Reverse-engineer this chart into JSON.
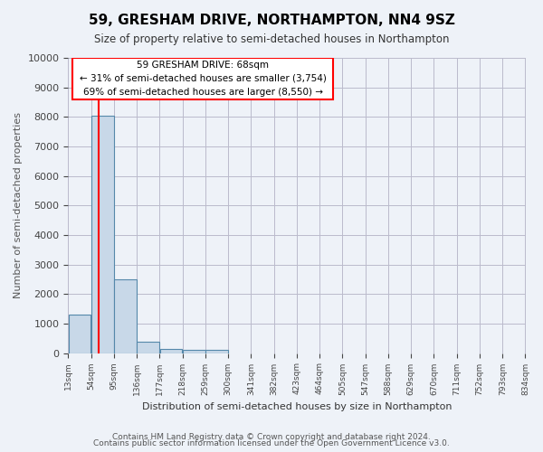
{
  "title": "59, GRESHAM DRIVE, NORTHAMPTON, NN4 9SZ",
  "subtitle": "Size of property relative to semi-detached houses in Northampton",
  "xlabel": "Distribution of semi-detached houses by size in Northampton",
  "ylabel": "Number of semi-detached properties",
  "footer_line1": "Contains HM Land Registry data © Crown copyright and database right 2024.",
  "footer_line2": "Contains public sector information licensed under the Open Government Licence v3.0.",
  "bin_labels": [
    "13sqm",
    "54sqm",
    "95sqm",
    "136sqm",
    "177sqm",
    "218sqm",
    "259sqm",
    "300sqm",
    "341sqm",
    "382sqm",
    "423sqm",
    "464sqm",
    "505sqm",
    "547sqm",
    "588sqm",
    "629sqm",
    "670sqm",
    "711sqm",
    "752sqm",
    "793sqm",
    "834sqm"
  ],
  "bar_heights": [
    1300,
    8050,
    2500,
    380,
    150,
    110,
    100,
    0,
    0,
    0,
    0,
    0,
    0,
    0,
    0,
    0,
    0,
    0,
    0,
    0
  ],
  "bar_color": "#c8d8e8",
  "bar_edge_color": "#5588aa",
  "property_size": 68,
  "property_label": "59 GRESHAM DRIVE: 68sqm",
  "pct_smaller": 31,
  "pct_larger": 69,
  "count_smaller": 3754,
  "count_larger": 8550,
  "redline_x": 68,
  "xlim_min": 13,
  "xlim_max": 834,
  "ylim": [
    0,
    10000
  ],
  "yticks": [
    0,
    1000,
    2000,
    3000,
    4000,
    5000,
    6000,
    7000,
    8000,
    9000,
    10000
  ],
  "bg_color": "#eef2f8",
  "grid_color": "#bbbbcc"
}
